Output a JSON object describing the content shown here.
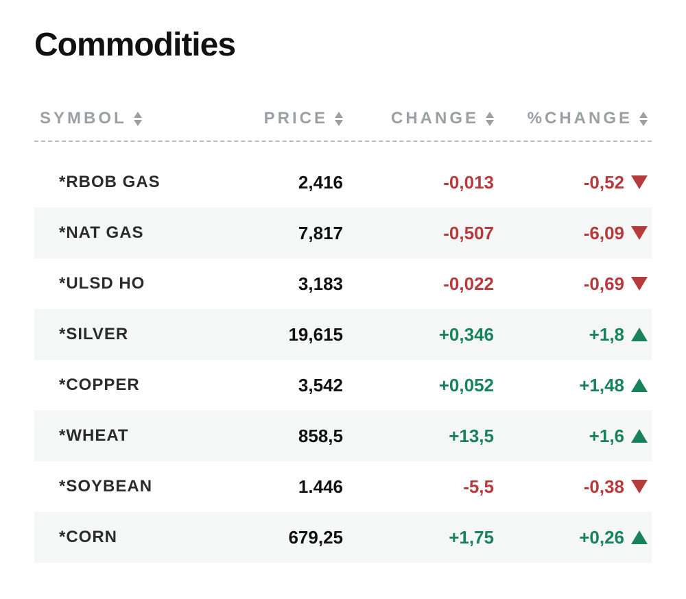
{
  "title": "Commodities",
  "colors": {
    "text": "#111111",
    "muted": "#9aa0a3",
    "up": "#18825a",
    "down": "#b63b3d",
    "row_alt_bg": "#f5f6f6",
    "dash": "#b9bdbf",
    "background": "#ffffff"
  },
  "columns": [
    {
      "key": "symbol",
      "label": "SYMBOL"
    },
    {
      "key": "price",
      "label": "PRICE"
    },
    {
      "key": "change",
      "label": "CHANGE"
    },
    {
      "key": "pchange",
      "label": "%CHANGE"
    }
  ],
  "rows": [
    {
      "symbol": "*RBOB GAS",
      "price": "2,416",
      "change": "-0,013",
      "pchange": "-0,52",
      "direction": "down"
    },
    {
      "symbol": "*NAT GAS",
      "price": "7,817",
      "change": "-0,507",
      "pchange": "-6,09",
      "direction": "down"
    },
    {
      "symbol": "*ULSD HO",
      "price": "3,183",
      "change": "-0,022",
      "pchange": "-0,69",
      "direction": "down"
    },
    {
      "symbol": "*SILVER",
      "price": "19,615",
      "change": "+0,346",
      "pchange": "+1,8",
      "direction": "up"
    },
    {
      "symbol": "*COPPER",
      "price": "3,542",
      "change": "+0,052",
      "pchange": "+1,48",
      "direction": "up"
    },
    {
      "symbol": "*WHEAT",
      "price": "858,5",
      "change": "+13,5",
      "pchange": "+1,6",
      "direction": "up"
    },
    {
      "symbol": "*SOYBEAN",
      "price": "1.446",
      "change": "-5,5",
      "pchange": "-0,38",
      "direction": "down"
    },
    {
      "symbol": "*CORN",
      "price": "679,25",
      "change": "+1,75",
      "pchange": "+0,26",
      "direction": "up"
    }
  ]
}
